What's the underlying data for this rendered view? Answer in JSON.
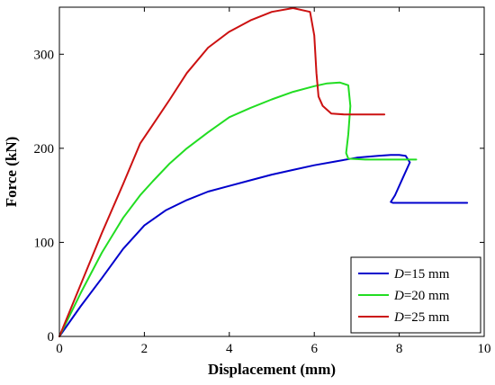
{
  "chart_data": {
    "type": "line",
    "title": "",
    "xlabel": "Displacement (mm)",
    "ylabel": "Force (kN)",
    "xlim": [
      0,
      10
    ],
    "ylim": [
      0,
      350
    ],
    "xticks": [
      0,
      2,
      4,
      6,
      8,
      10
    ],
    "yticks": [
      0,
      100,
      200,
      300
    ],
    "grid": false,
    "legend_position": "bottom-right",
    "series": [
      {
        "name_prefix": "D",
        "name_suffix": "=15 mm",
        "color": "#0000cc",
        "x": [
          0,
          0.5,
          1.0,
          1.5,
          2.0,
          2.5,
          3.0,
          3.5,
          4.0,
          4.5,
          5.0,
          5.5,
          6.0,
          6.5,
          7.0,
          7.5,
          7.8,
          8.0,
          8.15,
          8.25,
          8.1,
          7.9,
          7.8,
          7.85,
          8.5,
          9.0,
          9.6
        ],
        "y": [
          0,
          32,
          62,
          93,
          118,
          134,
          145,
          154,
          160,
          166,
          172,
          177,
          182,
          186,
          190,
          192,
          193,
          193,
          192,
          185,
          170,
          150,
          143,
          142,
          142,
          142,
          142
        ]
      },
      {
        "name_prefix": "D",
        "name_suffix": "=20 mm",
        "color": "#22dd22",
        "x": [
          0,
          0.5,
          1.0,
          1.5,
          1.9,
          2.2,
          2.6,
          3.0,
          3.5,
          4.0,
          4.5,
          5.0,
          5.5,
          6.0,
          6.3,
          6.6,
          6.8,
          6.85,
          6.8,
          6.75,
          6.8,
          7.2,
          7.6,
          8.0,
          8.4
        ],
        "y": [
          0,
          46,
          89,
          126,
          150,
          165,
          184,
          200,
          217,
          233,
          243,
          252,
          260,
          266,
          269,
          270,
          267,
          245,
          215,
          195,
          189,
          188,
          188,
          188,
          188
        ]
      },
      {
        "name_prefix": "D",
        "name_suffix": "=25 mm",
        "color": "#cc1111",
        "x": [
          0,
          0.5,
          1.0,
          1.5,
          1.9,
          2.2,
          2.6,
          3.0,
          3.5,
          4.0,
          4.5,
          5.0,
          5.5,
          5.9,
          6.0,
          6.05,
          6.1,
          6.2,
          6.4,
          6.7,
          7.0,
          7.3,
          7.65
        ],
        "y": [
          0,
          55,
          110,
          162,
          205,
          225,
          252,
          280,
          307,
          324,
          336,
          345,
          349,
          345,
          320,
          280,
          255,
          245,
          237,
          236,
          236,
          236,
          236
        ]
      }
    ]
  }
}
